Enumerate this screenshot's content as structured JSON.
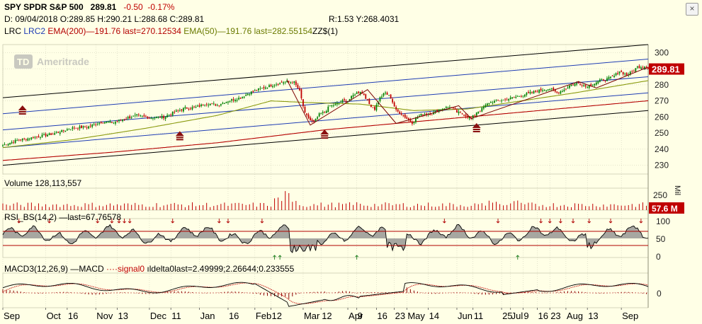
{
  "header": {
    "symbol": "SPY SPDR S&P 500",
    "last": "289.81",
    "change": "-0.50",
    "change_pct": "-0.17%",
    "ohlc_line": "D: 09/04/2018 O:289.85 H:290.21 L:288.68 C:289.81",
    "r_line": "R:1.53 Y:268.4031",
    "studies": {
      "lrc": "LRC",
      "lrc2": "LRC2",
      "ema200": "EMA(200)",
      "ema200_vals": "—191.76 last=270.12534",
      "ema50": "EMA(50)",
      "ema50_vals": "—191.76 last=282.55154",
      "zz": "ZZ$(1)"
    },
    "close_button": "×"
  },
  "watermark": {
    "logo": "TD",
    "text": "Ameritrade"
  },
  "colors": {
    "background": "#ffffe6",
    "grid": "#c9c9b4",
    "up": "#008000",
    "down": "#c00000",
    "lrc": "#000000",
    "lrc2": "#1e3cb4",
    "ema200": "#b40000",
    "ema50": "#8a9a10",
    "zigzag": "#7a0000",
    "volume": "#c00000",
    "rsi_line": "#000000",
    "rsi_fill": "#8a8a8a",
    "macd": "#000000",
    "macd_signal": "#c00000",
    "macd_hist": "#8a0000",
    "last_tag": "#c00000"
  },
  "chart_data": [
    {
      "name": "price",
      "type": "candlestick",
      "y_ticks": [
        230,
        240,
        250,
        260,
        270,
        280,
        290,
        300
      ],
      "ylim": [
        225,
        305
      ],
      "last_tag": "289.81",
      "grid": true,
      "close_path": [
        [
          0,
          242.5
        ],
        [
          8,
          245.5
        ],
        [
          18,
          247.5
        ],
        [
          28,
          249.5
        ],
        [
          38,
          253
        ],
        [
          48,
          254
        ],
        [
          55,
          257
        ],
        [
          62,
          256.5
        ],
        [
          68,
          259
        ],
        [
          75,
          261
        ],
        [
          82,
          259.5
        ],
        [
          90,
          260
        ],
        [
          96,
          263
        ],
        [
          102,
          265.5
        ],
        [
          108,
          266
        ],
        [
          114,
          268.5
        ],
        [
          120,
          267.5
        ],
        [
          126,
          270
        ],
        [
          133,
          272
        ],
        [
          138,
          275
        ],
        [
          144,
          277.5
        ],
        [
          150,
          279.5
        ],
        [
          156,
          281.5
        ],
        [
          159,
          282
        ],
        [
          163,
          281.5
        ],
        [
          166,
          276
        ],
        [
          169,
          262
        ],
        [
          172,
          258
        ],
        [
          174,
          256.5
        ],
        [
          177,
          261.5
        ],
        [
          180,
          263
        ],
        [
          183,
          267
        ],
        [
          186,
          267.5
        ],
        [
          190,
          270
        ],
        [
          193,
          270
        ],
        [
          197,
          274.5
        ],
        [
          200,
          276
        ],
        [
          202,
          274
        ],
        [
          205,
          268
        ],
        [
          208,
          265
        ],
        [
          211,
          272
        ],
        [
          214,
          275
        ],
        [
          217,
          272
        ],
        [
          220,
          264
        ],
        [
          223,
          262
        ],
        [
          226,
          259
        ],
        [
          229,
          256.5
        ],
        [
          232,
          260
        ],
        [
          235,
          262
        ],
        [
          240,
          262
        ],
        [
          245,
          265
        ],
        [
          250,
          266.5
        ],
        [
          254,
          263
        ],
        [
          258,
          261.5
        ],
        [
          262,
          259
        ],
        [
          265,
          263
        ],
        [
          268,
          265
        ],
        [
          272,
          269
        ],
        [
          277,
          270
        ],
        [
          282,
          271
        ],
        [
          287,
          272.5
        ],
        [
          292,
          274
        ],
        [
          297,
          275.5
        ],
        [
          302,
          277
        ],
        [
          306,
          277.5
        ],
        [
          310,
          275
        ],
        [
          314,
          277
        ],
        [
          317,
          279.5
        ],
        [
          320,
          280.5
        ],
        [
          323,
          281
        ],
        [
          326,
          279
        ],
        [
          330,
          280.5
        ],
        [
          334,
          282.5
        ],
        [
          338,
          283.5
        ],
        [
          342,
          285.5
        ],
        [
          345,
          288.5
        ],
        [
          349,
          286
        ],
        [
          352,
          288
        ],
        [
          355,
          291
        ],
        [
          359,
          291.5
        ],
        [
          361,
          291
        ]
      ],
      "wick_stretch": 1.4
    },
    {
      "name": "lrc",
      "type": "line",
      "series": [
        {
          "name": "LRC",
          "x": [
            0,
            361
          ],
          "upper": [
            272,
            305
          ],
          "lower": [
            230,
            264
          ]
        },
        {
          "name": "LRC2",
          "x": [
            0,
            361
          ],
          "upper": [
            262,
            296
          ],
          "mid": [
            252,
            285
          ],
          "lower": [
            241,
            275
          ]
        },
        {
          "name": "EMA(200)",
          "x": [
            0,
            60,
            120,
            180,
            240,
            300,
            361
          ],
          "values": [
            233,
            238,
            244,
            252,
            258,
            264,
            270.1
          ]
        },
        {
          "name": "EMA(50)",
          "x": [
            0,
            40,
            80,
            120,
            150,
            170,
            200,
            230,
            260,
            290,
            320,
            361
          ],
          "values": [
            241,
            246,
            253,
            261,
            270,
            269,
            268,
            264,
            265,
            270,
            275,
            282.6
          ]
        }
      ]
    },
    {
      "name": "zigzag",
      "type": "line",
      "points": [
        [
          159,
          283
        ],
        [
          172,
          255
        ],
        [
          204,
          277
        ],
        [
          220,
          256
        ],
        [
          255,
          267
        ],
        [
          262,
          259
        ],
        [
          322,
          282
        ],
        [
          332,
          278
        ],
        [
          361,
          291
        ]
      ]
    },
    {
      "name": "rsi",
      "type": "area",
      "title": "RSI_BS(14,2)",
      "last": "67.76578",
      "y_ticks": [
        0,
        50,
        100
      ],
      "ylim": [
        0,
        100
      ],
      "overbought": 70,
      "oversold": 30
    },
    {
      "name": "volume",
      "type": "bar",
      "title": "Volume",
      "value": "128,113,557",
      "y_ticks": [
        "250"
      ],
      "unit_label": "Mil",
      "last_tag": "57.6 M"
    },
    {
      "name": "macd",
      "type": "line",
      "title": "MACD3(12,26,9)",
      "legend": "MACD",
      "legend_signal": "signal",
      "legend_delta": "delta",
      "values_text": "0last=2.49999;2.26644;0.233555",
      "y_ticks": [
        "0"
      ]
    },
    {
      "name": "x-axis",
      "type": "axis",
      "labels": [
        "Sep",
        "Oct",
        "16",
        "Nov",
        "13",
        "Dec",
        "11",
        "Jan",
        "16",
        "Feb",
        "12",
        "Mar",
        "12",
        "Apr",
        "9",
        "16",
        "23",
        "May",
        "14",
        "Jun",
        "11",
        "25",
        "Jul",
        "9",
        "16",
        "23",
        "Aug",
        "13",
        "Sep"
      ],
      "positions": [
        0,
        24,
        36,
        52,
        64,
        82,
        94,
        110,
        126,
        141,
        150,
        168,
        178,
        193,
        198,
        209,
        219,
        226,
        238,
        254,
        263,
        279,
        284,
        291,
        299,
        306,
        315,
        327,
        346
      ]
    },
    {
      "name": "markers",
      "type": "annotation",
      "up_arrows": [
        [
          11,
          265
        ],
        [
          99,
          249
        ],
        [
          180,
          250
        ],
        [
          265,
          254
        ]
      ]
    }
  ]
}
